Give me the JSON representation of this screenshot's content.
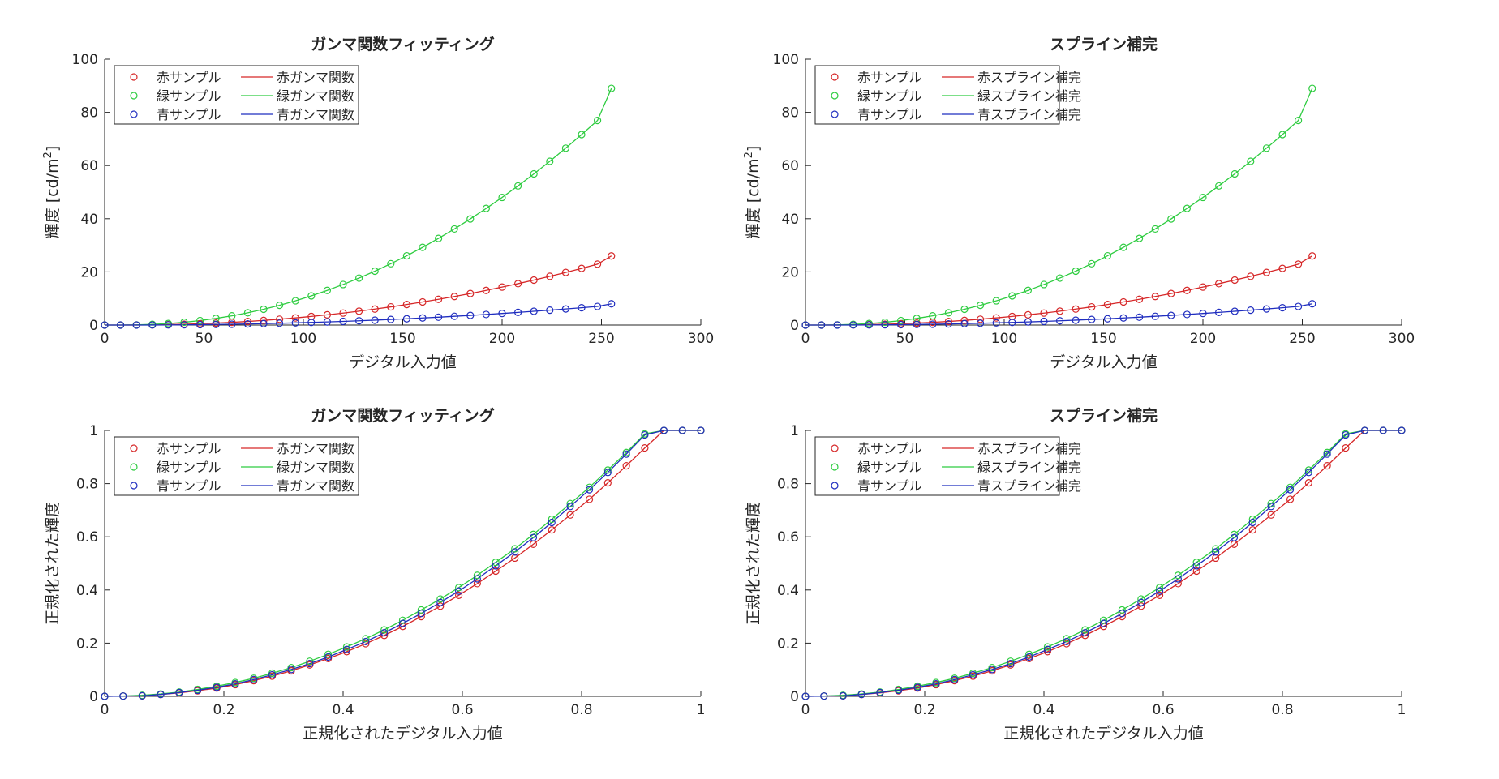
{
  "colors": {
    "red": "#d62728",
    "green": "#2ecc40",
    "blue": "#1f2dbf",
    "axis": "#262626"
  },
  "chart_data": [
    {
      "type": "line",
      "title": "ガンマ関数フィッティング",
      "xlabel": "デジタル入力値",
      "ylabel": "輝度 [cd/m²]",
      "ylabel_main": "輝度 [cd/m",
      "ylabel_sup": "2",
      "ylabel_end": "]",
      "xlim": [
        0,
        300
      ],
      "ylim": [
        0,
        100
      ],
      "xticks": [
        "0",
        "50",
        "100",
        "150",
        "200",
        "250",
        "300"
      ],
      "yticks": [
        "0",
        "20",
        "40",
        "60",
        "80",
        "100"
      ],
      "xtick_values": [
        0,
        50,
        100,
        150,
        200,
        250,
        300
      ],
      "ytick_values": [
        0,
        20,
        40,
        60,
        80,
        100
      ],
      "legend": {
        "placement": "top-left",
        "entries": [
          [
            "赤サンプル",
            "赤ガンマ関数"
          ],
          [
            "緑サンプル",
            "緑ガンマ関数"
          ],
          [
            "青サンプル",
            "青ガンマ関数"
          ]
        ]
      },
      "x": [
        0,
        8,
        16,
        24,
        32,
        40,
        48,
        56,
        64,
        72,
        80,
        88,
        96,
        104,
        112,
        120,
        128,
        136,
        144,
        152,
        160,
        168,
        176,
        184,
        192,
        200,
        208,
        216,
        224,
        232,
        240,
        248,
        255
      ],
      "series": [
        {
          "name": "赤",
          "color": "red",
          "samples": [
            0,
            0,
            0.02,
            0.08,
            0.17,
            0.31,
            0.5,
            0.74,
            1.02,
            1.36,
            1.75,
            2.19,
            2.69,
            3.24,
            3.85,
            4.51,
            5.23,
            6.01,
            6.84,
            7.73,
            8.68,
            9.68,
            10.74,
            11.86,
            13.04,
            14.28,
            15.57,
            16.92,
            18.32,
            19.79,
            21.31,
            22.9,
            26.0
          ]
        },
        {
          "name": "緑",
          "color": "green",
          "samples": [
            0,
            0,
            0.06,
            0.27,
            0.58,
            1.05,
            1.69,
            2.5,
            3.47,
            4.62,
            5.94,
            7.44,
            9.12,
            10.98,
            13.03,
            15.26,
            17.67,
            20.28,
            23.07,
            26.05,
            29.23,
            32.59,
            36.15,
            39.91,
            43.86,
            48.0,
            52.34,
            56.87,
            61.59,
            66.52,
            71.64,
            76.95,
            89.0
          ]
        },
        {
          "name": "青",
          "color": "blue",
          "samples": [
            0,
            0,
            0.01,
            0.02,
            0.05,
            0.1,
            0.15,
            0.23,
            0.31,
            0.42,
            0.54,
            0.67,
            0.82,
            0.99,
            1.18,
            1.38,
            1.6,
            1.84,
            2.09,
            2.37,
            2.66,
            2.96,
            3.29,
            3.63,
            3.99,
            4.37,
            4.76,
            5.18,
            5.61,
            6.05,
            6.52,
            7.0,
            8.0
          ]
        }
      ]
    },
    {
      "type": "line",
      "title": "スプライン補完",
      "xlabel": "デジタル入力値",
      "ylabel": "輝度 [cd/m²]",
      "ylabel_main": "輝度 [cd/m",
      "ylabel_sup": "2",
      "ylabel_end": "]",
      "xlim": [
        0,
        300
      ],
      "ylim": [
        0,
        100
      ],
      "xticks": [
        "0",
        "50",
        "100",
        "150",
        "200",
        "250",
        "300"
      ],
      "yticks": [
        "0",
        "20",
        "40",
        "60",
        "80",
        "100"
      ],
      "xtick_values": [
        0,
        50,
        100,
        150,
        200,
        250,
        300
      ],
      "ytick_values": [
        0,
        20,
        40,
        60,
        80,
        100
      ],
      "legend": {
        "placement": "top-left",
        "entries": [
          [
            "赤サンプル",
            "赤スプライン補完"
          ],
          [
            "緑サンプル",
            "緑スプライン補完"
          ],
          [
            "青サンプル",
            "青スプライン補完"
          ]
        ]
      },
      "x": [
        0,
        8,
        16,
        24,
        32,
        40,
        48,
        56,
        64,
        72,
        80,
        88,
        96,
        104,
        112,
        120,
        128,
        136,
        144,
        152,
        160,
        168,
        176,
        184,
        192,
        200,
        208,
        216,
        224,
        232,
        240,
        248,
        255
      ],
      "series": [
        {
          "name": "赤",
          "color": "red",
          "samples": [
            0,
            0,
            0.02,
            0.08,
            0.17,
            0.31,
            0.5,
            0.74,
            1.02,
            1.36,
            1.75,
            2.19,
            2.69,
            3.24,
            3.85,
            4.51,
            5.23,
            6.01,
            6.84,
            7.73,
            8.68,
            9.68,
            10.74,
            11.86,
            13.04,
            14.28,
            15.57,
            16.92,
            18.32,
            19.79,
            21.31,
            22.9,
            26.0
          ]
        },
        {
          "name": "緑",
          "color": "green",
          "samples": [
            0,
            0,
            0.06,
            0.27,
            0.58,
            1.05,
            1.69,
            2.5,
            3.47,
            4.62,
            5.94,
            7.44,
            9.12,
            10.98,
            13.03,
            15.26,
            17.67,
            20.28,
            23.07,
            26.05,
            29.23,
            32.59,
            36.15,
            39.91,
            43.86,
            48.0,
            52.34,
            56.87,
            61.59,
            66.52,
            71.64,
            76.95,
            89.0
          ]
        },
        {
          "name": "青",
          "color": "blue",
          "samples": [
            0,
            0,
            0.01,
            0.02,
            0.05,
            0.1,
            0.15,
            0.23,
            0.31,
            0.42,
            0.54,
            0.67,
            0.82,
            0.99,
            1.18,
            1.38,
            1.6,
            1.84,
            2.09,
            2.37,
            2.66,
            2.96,
            3.29,
            3.63,
            3.99,
            4.37,
            4.76,
            5.18,
            5.61,
            6.05,
            6.52,
            7.0,
            8.0
          ]
        }
      ]
    },
    {
      "type": "line",
      "title": "ガンマ関数フィッティング",
      "xlabel": "正規化されたデジタル入力値",
      "ylabel": "正規化された輝度",
      "xlim": [
        0,
        1
      ],
      "ylim": [
        0,
        1
      ],
      "xticks": [
        "0",
        "0.2",
        "0.4",
        "0.6",
        "0.8",
        "1"
      ],
      "yticks": [
        "0",
        "0.2",
        "0.4",
        "0.6",
        "0.8",
        "1"
      ],
      "xtick_values": [
        0,
        0.2,
        0.4,
        0.6,
        0.8,
        1
      ],
      "ytick_values": [
        0,
        0.2,
        0.4,
        0.6,
        0.8,
        1
      ],
      "legend": {
        "placement": "top-left",
        "entries": [
          [
            "赤サンプル",
            "赤ガンマ関数"
          ],
          [
            "緑サンプル",
            "緑ガンマ関数"
          ],
          [
            "青サンプル",
            "青ガンマ関数"
          ]
        ]
      },
      "x": [
        0,
        0.031,
        0.063,
        0.094,
        0.125,
        0.156,
        0.188,
        0.219,
        0.25,
        0.281,
        0.313,
        0.344,
        0.375,
        0.406,
        0.438,
        0.469,
        0.5,
        0.531,
        0.563,
        0.594,
        0.625,
        0.656,
        0.688,
        0.719,
        0.75,
        0.781,
        0.813,
        0.844,
        0.875,
        0.906,
        0.938,
        0.969,
        1.0
      ],
      "series": [
        {
          "name": "赤",
          "color": "red",
          "samples": [
            0,
            0.001,
            0.002,
            0.007,
            0.013,
            0.021,
            0.031,
            0.044,
            0.059,
            0.076,
            0.096,
            0.118,
            0.142,
            0.168,
            0.198,
            0.229,
            0.263,
            0.3,
            0.339,
            0.38,
            0.424,
            0.471,
            0.52,
            0.572,
            0.626,
            0.682,
            0.741,
            0.803,
            0.867,
            0.934,
            1.0,
            1.0,
            1.0
          ]
        },
        {
          "name": "緑",
          "color": "green",
          "samples": [
            0,
            0.001,
            0.004,
            0.009,
            0.016,
            0.026,
            0.038,
            0.052,
            0.068,
            0.087,
            0.108,
            0.132,
            0.158,
            0.186,
            0.217,
            0.25,
            0.286,
            0.325,
            0.366,
            0.409,
            0.455,
            0.504,
            0.555,
            0.609,
            0.666,
            0.725,
            0.786,
            0.851,
            0.917,
            0.987,
            1.0,
            1.0,
            1.0
          ]
        },
        {
          "name": "青",
          "color": "blue",
          "samples": [
            0,
            0.001,
            0.002,
            0.007,
            0.014,
            0.023,
            0.034,
            0.047,
            0.063,
            0.081,
            0.101,
            0.123,
            0.148,
            0.176,
            0.206,
            0.239,
            0.274,
            0.312,
            0.353,
            0.396,
            0.442,
            0.491,
            0.543,
            0.597,
            0.654,
            0.714,
            0.777,
            0.842,
            0.911,
            0.983,
            1.0,
            1.0,
            1.0
          ]
        }
      ]
    },
    {
      "type": "line",
      "title": "スプライン補完",
      "xlabel": "正規化されたデジタル入力値",
      "ylabel": "正規化された輝度",
      "xlim": [
        0,
        1
      ],
      "ylim": [
        0,
        1
      ],
      "xticks": [
        "0",
        "0.2",
        "0.4",
        "0.6",
        "0.8",
        "1"
      ],
      "yticks": [
        "0",
        "0.2",
        "0.4",
        "0.6",
        "0.8",
        "1"
      ],
      "xtick_values": [
        0,
        0.2,
        0.4,
        0.6,
        0.8,
        1
      ],
      "ytick_values": [
        0,
        0.2,
        0.4,
        0.6,
        0.8,
        1
      ],
      "legend": {
        "placement": "top-left",
        "entries": [
          [
            "赤サンプル",
            "赤スプライン補完"
          ],
          [
            "緑サンプル",
            "緑スプライン補完"
          ],
          [
            "青サンプル",
            "青スプライン補完"
          ]
        ]
      },
      "x": [
        0,
        0.031,
        0.063,
        0.094,
        0.125,
        0.156,
        0.188,
        0.219,
        0.25,
        0.281,
        0.313,
        0.344,
        0.375,
        0.406,
        0.438,
        0.469,
        0.5,
        0.531,
        0.563,
        0.594,
        0.625,
        0.656,
        0.688,
        0.719,
        0.75,
        0.781,
        0.813,
        0.844,
        0.875,
        0.906,
        0.938,
        0.969,
        1.0
      ],
      "series": [
        {
          "name": "赤",
          "color": "red",
          "samples": [
            0,
            0.001,
            0.002,
            0.007,
            0.013,
            0.021,
            0.031,
            0.044,
            0.059,
            0.076,
            0.096,
            0.118,
            0.142,
            0.168,
            0.198,
            0.229,
            0.263,
            0.3,
            0.339,
            0.38,
            0.424,
            0.471,
            0.52,
            0.572,
            0.626,
            0.682,
            0.741,
            0.803,
            0.867,
            0.934,
            1.0,
            1.0,
            1.0
          ]
        },
        {
          "name": "緑",
          "color": "green",
          "samples": [
            0,
            0.001,
            0.004,
            0.009,
            0.016,
            0.026,
            0.038,
            0.052,
            0.068,
            0.087,
            0.108,
            0.132,
            0.158,
            0.186,
            0.217,
            0.25,
            0.286,
            0.325,
            0.366,
            0.409,
            0.455,
            0.504,
            0.555,
            0.609,
            0.666,
            0.725,
            0.786,
            0.851,
            0.917,
            0.987,
            1.0,
            1.0,
            1.0
          ]
        },
        {
          "name": "青",
          "color": "blue",
          "samples": [
            0,
            0.001,
            0.002,
            0.007,
            0.014,
            0.023,
            0.034,
            0.047,
            0.063,
            0.081,
            0.101,
            0.123,
            0.148,
            0.176,
            0.206,
            0.239,
            0.274,
            0.312,
            0.353,
            0.396,
            0.442,
            0.491,
            0.543,
            0.597,
            0.654,
            0.714,
            0.777,
            0.842,
            0.911,
            0.983,
            1.0,
            1.0,
            1.0
          ]
        }
      ]
    }
  ]
}
